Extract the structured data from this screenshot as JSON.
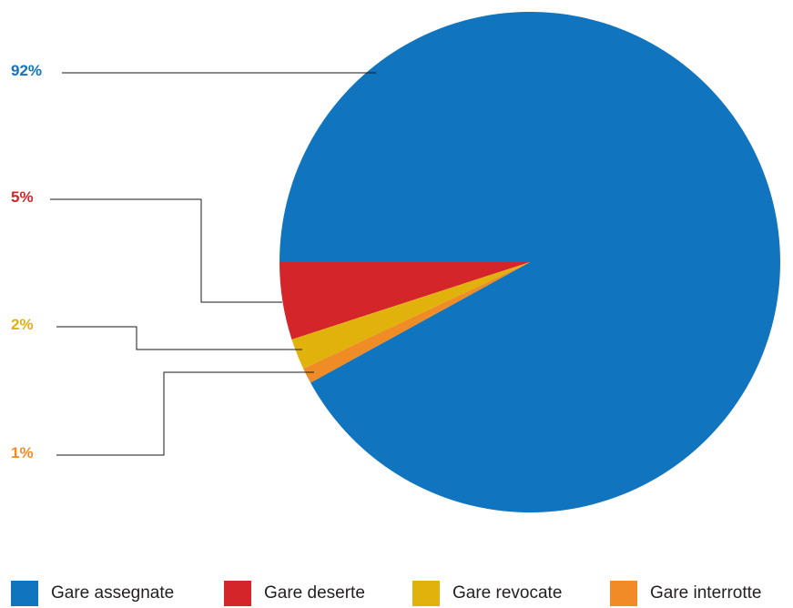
{
  "chart_data": {
    "type": "pie",
    "title": "",
    "slices": [
      {
        "name": "Gare assegnate",
        "value": 92,
        "label": "92%",
        "color": "#1075be"
      },
      {
        "name": "Gare deserte",
        "value": 5,
        "label": "5%",
        "color": "#d4252b"
      },
      {
        "name": "Gare revocate",
        "value": 2,
        "label": "2%",
        "color": "#e1b20c"
      },
      {
        "name": "Gare interrotte",
        "value": 1,
        "label": "1%",
        "color": "#f08c25"
      }
    ],
    "legend_placement": "bottom"
  }
}
